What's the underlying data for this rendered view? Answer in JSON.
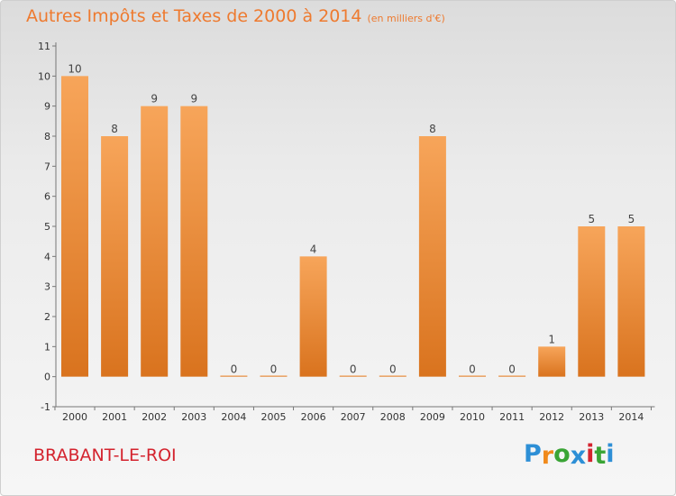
{
  "title": {
    "main": "Autres Impôts et Taxes de 2000 à 2014",
    "unit": "(en milliers d'€)"
  },
  "commune": "BRABANT-LE-ROI",
  "logo": {
    "text": "Proxiti",
    "letters": [
      "P",
      "r",
      "o",
      "x",
      "i",
      "t",
      "i"
    ],
    "colors": [
      "#2d8fd6",
      "#f08a1c",
      "#3aa435",
      "#2d8fd6",
      "#d4232e",
      "#3aa435",
      "#2d8fd6"
    ]
  },
  "colors": {
    "bar_top": "#f7a55a",
    "bar_bottom": "#d9731e",
    "title": "#ee7a2f",
    "commune": "#d4232e",
    "background": "#e8e8e8"
  },
  "chart_data": {
    "type": "bar",
    "title": "Autres Impôts et Taxes de 2000 à 2014",
    "subtitle": "(en milliers d'€)",
    "categories": [
      "2000",
      "2001",
      "2002",
      "2003",
      "2004",
      "2005",
      "2006",
      "2007",
      "2008",
      "2009",
      "2010",
      "2011",
      "2012",
      "2013",
      "2014"
    ],
    "values": [
      10,
      8,
      9,
      9,
      0,
      0,
      4,
      0,
      0,
      8,
      0,
      0,
      1,
      5,
      5
    ],
    "value_labels": [
      "10",
      "8",
      "9",
      "9",
      "0",
      "0",
      "4",
      "0",
      "0",
      "8",
      "0",
      "0",
      "1",
      "5",
      "5"
    ],
    "ylim": [
      -1,
      11
    ],
    "y_ticks": [
      -1,
      0,
      1,
      2,
      3,
      4,
      5,
      6,
      7,
      8,
      9,
      10,
      11
    ],
    "y_tick_labels": [
      "-1",
      "0",
      "1",
      "2",
      "3",
      "4",
      "5",
      "6",
      "7",
      "8",
      "9",
      "10",
      "11"
    ],
    "xlabel": "",
    "ylabel": "",
    "grid": false,
    "legend": false
  }
}
